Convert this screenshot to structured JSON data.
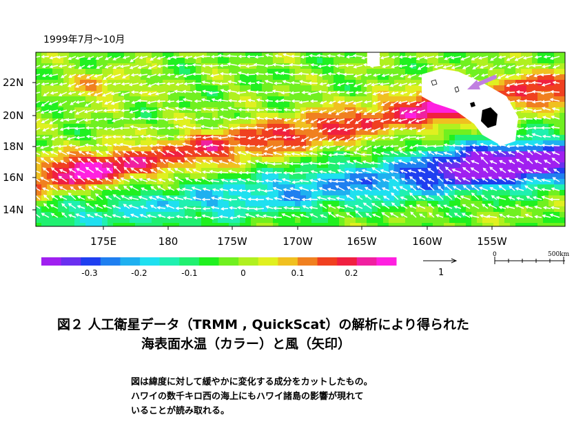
{
  "chart_data": {
    "type": "heatmap",
    "title": "1999年7月～10月",
    "x_ticks": [
      "175E",
      "180",
      "175W",
      "170W",
      "165W",
      "160W",
      "155W"
    ],
    "y_ticks": [
      "22N",
      "20N",
      "18N",
      "16N",
      "14N"
    ],
    "colorbar_ticks": [
      "-0.3",
      "-0.2",
      "-0.1",
      "0",
      "0.1",
      "0.2"
    ],
    "colorbar_range": [
      -0.4,
      0.35
    ],
    "colorbar_colors": [
      "#a020f0",
      "#6a2ff0",
      "#1f3ff0",
      "#1f7ff0",
      "#1fb0f0",
      "#1fe0f0",
      "#20f0b0",
      "#20f070",
      "#20f020",
      "#70f020",
      "#b0f020",
      "#e0f020",
      "#f0c020",
      "#f08020",
      "#f04020",
      "#f02040",
      "#f020a0",
      "#ff20e0"
    ],
    "wind_reference_label": "1",
    "scale_bar": {
      "start_label": "0",
      "end_label": "500km"
    },
    "accent_arrow_color": "#c080e0"
  },
  "caption": {
    "line1": "図２ 人工衛星データ（TRMM , QuickScat）の解析により得られた",
    "line2": "海表面水温（カラー）と風（矢印）"
  },
  "note": {
    "line1": "図は緯度に対して緩やかに変化する成分をカットしたもの。",
    "line2": "ハワイの数千キロ西の海上にもハワイ諸島の影響が現れて",
    "line3": "いることが読み取れる。"
  }
}
